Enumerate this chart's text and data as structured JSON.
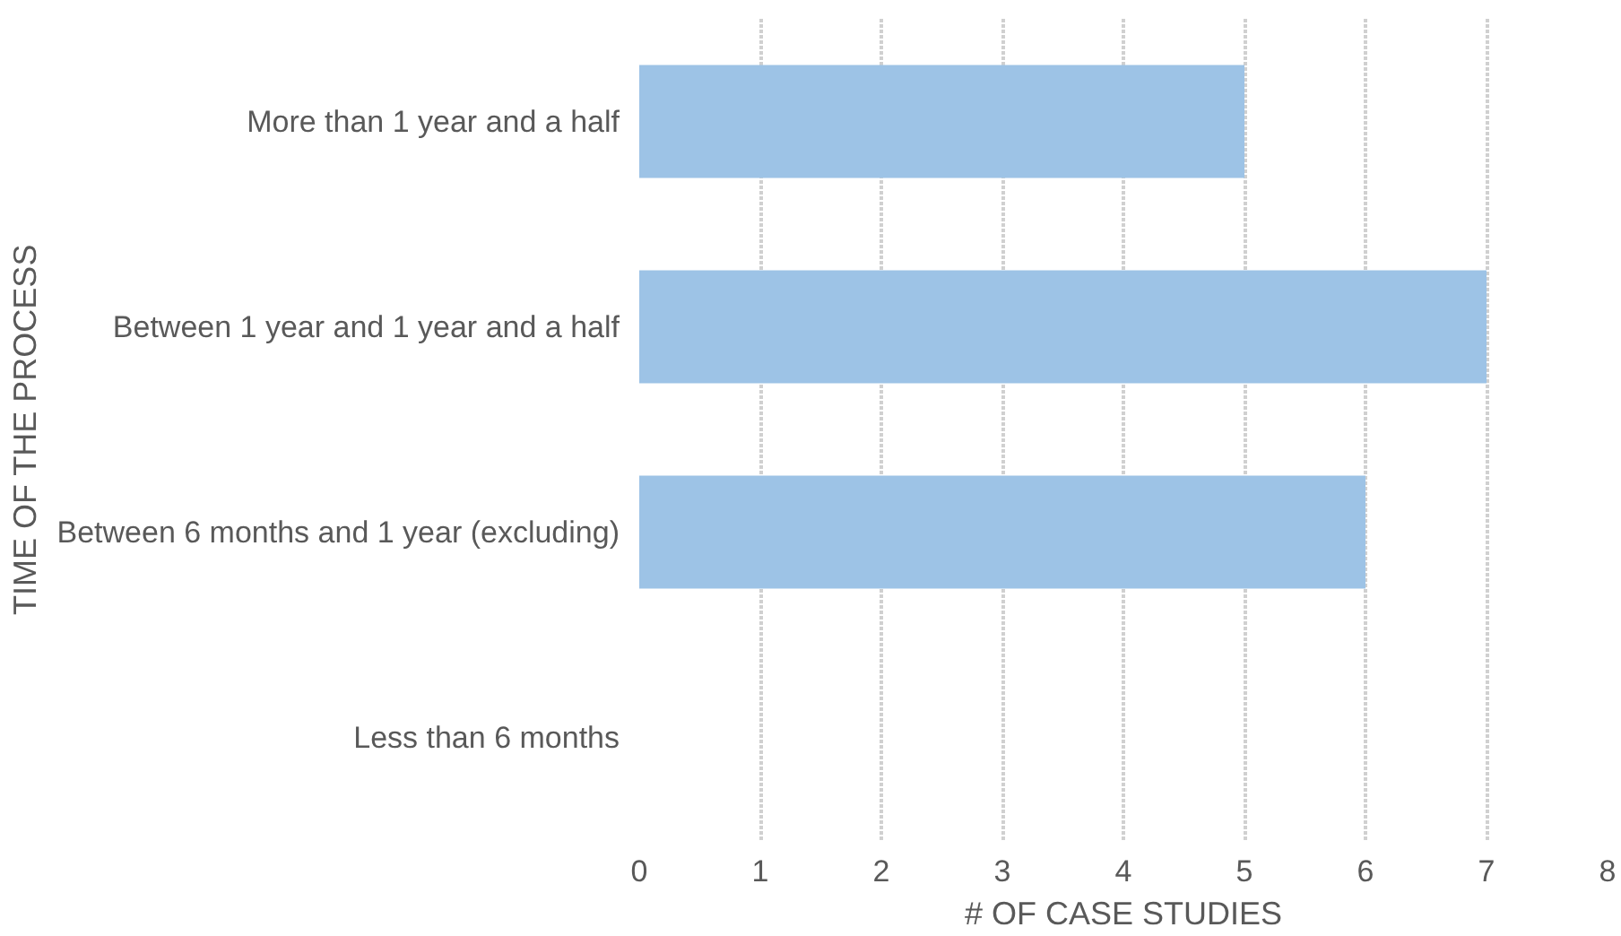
{
  "chart_data": {
    "type": "bar",
    "orientation": "horizontal",
    "categories": [
      "More than 1 year and a half",
      "Between 1 year and 1 year and a half",
      "Between 6 months and 1 year (excluding)",
      "Less than 6 months"
    ],
    "values": [
      5,
      7,
      6,
      0
    ],
    "color": "#9dc3e6",
    "xlim": [
      0,
      8
    ],
    "xticks": [
      0,
      1,
      2,
      3,
      4,
      5,
      6,
      7,
      8
    ],
    "xlabel": "# OF CASE STUDIES",
    "ylabel": "TIME OF THE PROCESS",
    "grid": "x"
  }
}
